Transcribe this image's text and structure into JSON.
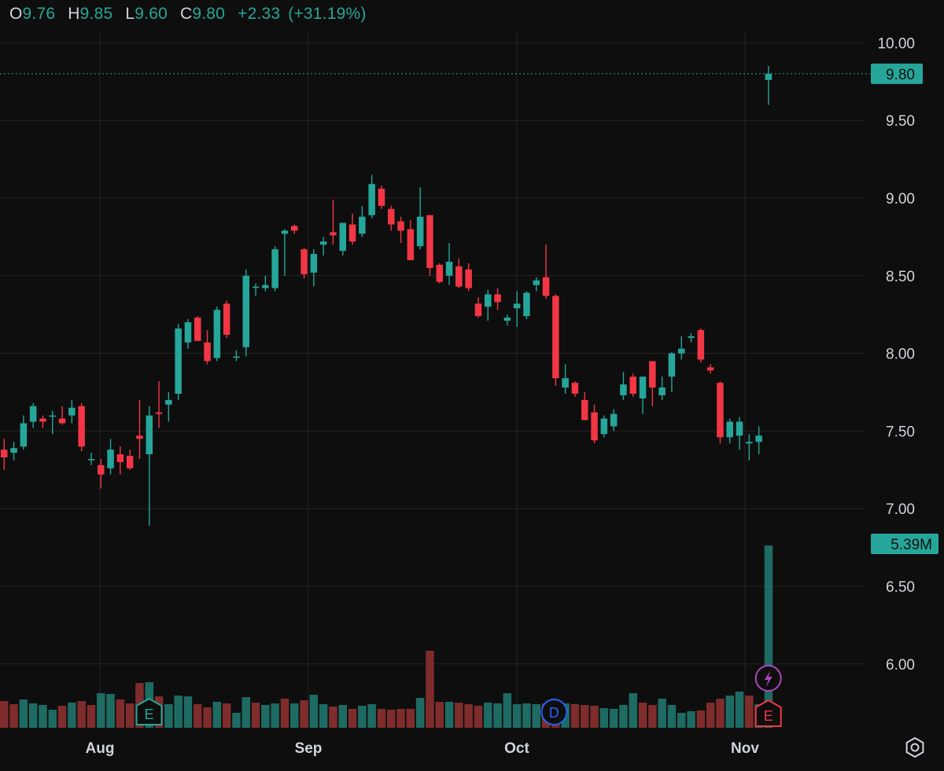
{
  "legend": {
    "open_label": "O",
    "open": "9.76",
    "high_label": "H",
    "high": "9.85",
    "low_label": "L",
    "low": "9.60",
    "close_label": "C",
    "close": "9.80",
    "change": "+2.33",
    "change_pct": "(+31.19%)"
  },
  "colors": {
    "up": "#26a69a",
    "down": "#f23645",
    "up_vol": "#1e6b63",
    "down_vol": "#7f2c2c",
    "event_earnings": "#26a69a",
    "event_dividend": "#2962ff",
    "event_split": "#ab47bc",
    "event_earnings_future": "#f23645"
  },
  "chart_data": {
    "type": "candlestick",
    "price_axis": {
      "min": 5.6,
      "max": 10.2,
      "ticks": [
        "10.00",
        "9.50",
        "9.00",
        "8.50",
        "8.00",
        "7.50",
        "7.00",
        "6.50",
        "6.00"
      ]
    },
    "x_labels": [
      "Aug",
      "Sep",
      "Oct",
      "Nov"
    ],
    "last_price_label": "9.80",
    "last_volume_label": "5.39M",
    "candles": [
      [
        7.38,
        7.45,
        7.25,
        7.33
      ],
      [
        7.36,
        7.43,
        7.31,
        7.39
      ],
      [
        7.4,
        7.6,
        7.38,
        7.55
      ],
      [
        7.56,
        7.68,
        7.52,
        7.66
      ],
      [
        7.58,
        7.6,
        7.52,
        7.56
      ],
      [
        7.6,
        7.63,
        7.48,
        7.6
      ],
      [
        7.58,
        7.66,
        7.54,
        7.55
      ],
      [
        7.6,
        7.7,
        7.55,
        7.65
      ],
      [
        7.66,
        7.68,
        7.37,
        7.4
      ],
      [
        7.32,
        7.36,
        7.28,
        7.32
      ],
      [
        7.28,
        7.32,
        7.13,
        7.22
      ],
      [
        7.26,
        7.45,
        7.22,
        7.38
      ],
      [
        7.35,
        7.4,
        7.22,
        7.3
      ],
      [
        7.34,
        7.38,
        7.25,
        7.26
      ],
      [
        7.47,
        7.7,
        7.32,
        7.45
      ],
      [
        7.35,
        7.66,
        6.89,
        7.6
      ],
      [
        7.62,
        7.82,
        7.52,
        7.61
      ],
      [
        7.67,
        7.75,
        7.56,
        7.7
      ],
      [
        7.74,
        8.19,
        7.7,
        8.16
      ],
      [
        8.07,
        8.22,
        8.03,
        8.2
      ],
      [
        8.23,
        8.24,
        8.08,
        8.08
      ],
      [
        8.07,
        8.15,
        7.93,
        7.95
      ],
      [
        7.97,
        8.3,
        7.95,
        8.28
      ],
      [
        8.32,
        8.34,
        8.1,
        8.12
      ],
      [
        7.98,
        8.02,
        7.95,
        7.98
      ],
      [
        8.04,
        8.54,
        7.98,
        8.5
      ],
      [
        8.43,
        8.45,
        8.37,
        8.43
      ],
      [
        8.42,
        8.5,
        8.4,
        8.44
      ],
      [
        8.42,
        8.69,
        8.4,
        8.67
      ],
      [
        8.77,
        8.8,
        8.5,
        8.79
      ],
      [
        8.82,
        8.83,
        8.77,
        8.79
      ],
      [
        8.67,
        8.68,
        8.48,
        8.51
      ],
      [
        8.52,
        8.67,
        8.43,
        8.64
      ],
      [
        8.7,
        8.75,
        8.63,
        8.72
      ],
      [
        8.78,
        8.99,
        8.7,
        8.76
      ],
      [
        8.66,
        8.84,
        8.63,
        8.84
      ],
      [
        8.83,
        8.9,
        8.7,
        8.72
      ],
      [
        8.77,
        8.95,
        8.75,
        8.88
      ],
      [
        8.89,
        9.15,
        8.87,
        9.09
      ],
      [
        9.06,
        9.08,
        8.93,
        8.95
      ],
      [
        8.93,
        8.95,
        8.79,
        8.83
      ],
      [
        8.85,
        8.88,
        8.71,
        8.79
      ],
      [
        8.8,
        8.86,
        8.6,
        8.6
      ],
      [
        8.69,
        9.07,
        8.67,
        8.88
      ],
      [
        8.89,
        8.89,
        8.5,
        8.55
      ],
      [
        8.57,
        8.58,
        8.45,
        8.46
      ],
      [
        8.5,
        8.71,
        8.44,
        8.59
      ],
      [
        8.56,
        8.61,
        8.42,
        8.43
      ],
      [
        8.54,
        8.58,
        8.4,
        8.42
      ],
      [
        8.32,
        8.36,
        8.23,
        8.24
      ],
      [
        8.3,
        8.41,
        8.21,
        8.38
      ],
      [
        8.38,
        8.42,
        8.28,
        8.33
      ],
      [
        8.21,
        8.25,
        8.18,
        8.23
      ],
      [
        8.29,
        8.4,
        8.17,
        8.32
      ],
      [
        8.24,
        8.4,
        8.22,
        8.39
      ],
      [
        8.44,
        8.49,
        8.4,
        8.47
      ],
      [
        8.49,
        8.7,
        8.35,
        8.37
      ],
      [
        8.37,
        8.38,
        7.79,
        7.84
      ],
      [
        7.78,
        7.93,
        7.74,
        7.84
      ],
      [
        7.81,
        7.82,
        7.72,
        7.74
      ],
      [
        7.7,
        7.75,
        7.57,
        7.57
      ],
      [
        7.62,
        7.67,
        7.42,
        7.44
      ],
      [
        7.48,
        7.6,
        7.46,
        7.58
      ],
      [
        7.53,
        7.64,
        7.5,
        7.61
      ],
      [
        7.73,
        7.88,
        7.7,
        7.8
      ],
      [
        7.85,
        7.87,
        7.72,
        7.74
      ],
      [
        7.71,
        7.85,
        7.61,
        7.85
      ],
      [
        7.95,
        7.95,
        7.66,
        7.78
      ],
      [
        7.73,
        7.85,
        7.7,
        7.78
      ],
      [
        7.85,
        8.01,
        7.75,
        8.0
      ],
      [
        8.0,
        8.11,
        7.96,
        8.03
      ],
      [
        8.1,
        8.13,
        8.07,
        8.11
      ],
      [
        8.15,
        8.16,
        7.94,
        7.96
      ],
      [
        7.91,
        7.93,
        7.87,
        7.89
      ],
      [
        7.81,
        7.82,
        7.42,
        7.46
      ],
      [
        7.46,
        7.58,
        7.42,
        7.56
      ],
      [
        7.47,
        7.59,
        7.38,
        7.56
      ],
      [
        7.42,
        7.48,
        7.31,
        7.43
      ],
      [
        7.43,
        7.53,
        7.35,
        7.47
      ],
      [
        9.76,
        9.85,
        9.6,
        9.8
      ]
    ],
    "volumes": [
      [
        34,
        "down"
      ],
      [
        30,
        "down"
      ],
      [
        36,
        "up"
      ],
      [
        31,
        "up"
      ],
      [
        29,
        "up"
      ],
      [
        23,
        "up"
      ],
      [
        28,
        "down"
      ],
      [
        32,
        "up"
      ],
      [
        34,
        "down"
      ],
      [
        29,
        "down"
      ],
      [
        44,
        "up"
      ],
      [
        43,
        "up"
      ],
      [
        36,
        "down"
      ],
      [
        31,
        "down"
      ],
      [
        57,
        "down"
      ],
      [
        58,
        "up"
      ],
      [
        40,
        "down"
      ],
      [
        30,
        "up"
      ],
      [
        41,
        "up"
      ],
      [
        40,
        "up"
      ],
      [
        30,
        "down"
      ],
      [
        26,
        "down"
      ],
      [
        33,
        "up"
      ],
      [
        31,
        "down"
      ],
      [
        19,
        "up"
      ],
      [
        39,
        "up"
      ],
      [
        32,
        "down"
      ],
      [
        29,
        "up"
      ],
      [
        31,
        "up"
      ],
      [
        37,
        "down"
      ],
      [
        31,
        "up"
      ],
      [
        35,
        "down"
      ],
      [
        42,
        "up"
      ],
      [
        30,
        "up"
      ],
      [
        27,
        "down"
      ],
      [
        29,
        "up"
      ],
      [
        24,
        "down"
      ],
      [
        28,
        "up"
      ],
      [
        30,
        "up"
      ],
      [
        24,
        "down"
      ],
      [
        23,
        "down"
      ],
      [
        24,
        "down"
      ],
      [
        24,
        "down"
      ],
      [
        38,
        "up"
      ],
      [
        98,
        "down"
      ],
      [
        33,
        "down"
      ],
      [
        33,
        "up"
      ],
      [
        32,
        "down"
      ],
      [
        30,
        "down"
      ],
      [
        28,
        "down"
      ],
      [
        32,
        "up"
      ],
      [
        31,
        "up"
      ],
      [
        44,
        "up"
      ],
      [
        30,
        "up"
      ],
      [
        31,
        "up"
      ],
      [
        30,
        "up"
      ],
      [
        31,
        "down"
      ],
      [
        30,
        "down"
      ],
      [
        31,
        "up"
      ],
      [
        30,
        "down"
      ],
      [
        29,
        "down"
      ],
      [
        28,
        "down"
      ],
      [
        25,
        "up"
      ],
      [
        24,
        "up"
      ],
      [
        29,
        "up"
      ],
      [
        44,
        "up"
      ],
      [
        32,
        "down"
      ],
      [
        29,
        "down"
      ],
      [
        37,
        "up"
      ],
      [
        29,
        "up"
      ],
      [
        19,
        "up"
      ],
      [
        21,
        "up"
      ],
      [
        22,
        "down"
      ],
      [
        32,
        "down"
      ],
      [
        37,
        "down"
      ],
      [
        41,
        "up"
      ],
      [
        46,
        "up"
      ],
      [
        41,
        "down"
      ],
      [
        30,
        "up"
      ],
      [
        232,
        "up"
      ]
    ],
    "events": [
      {
        "label": "E",
        "kind": "earnings",
        "bar": 15
      },
      {
        "label": "D",
        "kind": "dividend",
        "bar": 58
      },
      {
        "kind": "split",
        "bar": 79
      },
      {
        "label": "E",
        "kind": "earnings_future",
        "bar": 79
      }
    ]
  }
}
